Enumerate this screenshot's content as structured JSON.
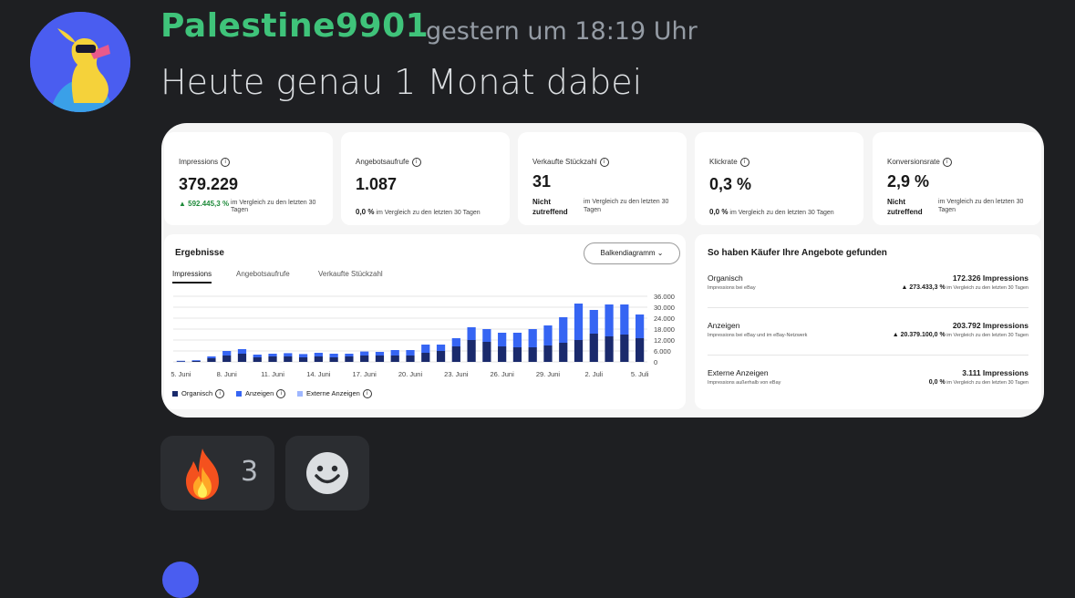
{
  "message": {
    "author": "Palestine9901",
    "timestamp": "gestern um 18:19 Uhr",
    "text": "Heute genau 1 Monat dabei"
  },
  "kpis": [
    {
      "label": "Impressions",
      "value": "379.229",
      "change": "592.445,3 %",
      "compare": "im Vergleich zu den letzten 30 Tagen"
    },
    {
      "label": "Angebotsaufrufe",
      "value": "1.087",
      "change": "0,0 %",
      "compare": "im Vergleich zu den letzten 30 Tagen"
    },
    {
      "label": "Verkaufte Stückzahl",
      "value": "31",
      "change": "Nicht zutreffend",
      "compare": "im Vergleich zu den letzten 30 Tagen"
    },
    {
      "label": "Klickrate",
      "value": "0,3 %",
      "change": "0,0 %",
      "compare": "im Vergleich zu den letzten 30 Tagen"
    },
    {
      "label": "Konversionsrate",
      "value": "2,9 %",
      "change": "Nicht zutreffend",
      "compare": "im Vergleich zu den letzten 30 Tagen"
    }
  ],
  "results": {
    "title": "Ergebnisse",
    "tabs": [
      "Impressions",
      "Angebotsaufrufe",
      "Verkaufte Stückzahl"
    ],
    "dropdown": "Balkendiagramm",
    "legend": [
      "Organisch",
      "Anzeigen",
      "Externe Anzeigen"
    ]
  },
  "chart_data": {
    "type": "bar",
    "stacked": true,
    "x_tick_labels": [
      "5. Juni",
      "8. Juni",
      "11. Juni",
      "14. Juni",
      "17. Juni",
      "20. Juni",
      "23. Juni",
      "26. Juni",
      "29. Juni",
      "2. Juli",
      "5. Juli"
    ],
    "y_tick_labels": [
      "36.000",
      "30.000",
      "24.000",
      "18.000",
      "12.000",
      "6.000",
      "0"
    ],
    "ylim": [
      0,
      36000
    ],
    "series": [
      {
        "name": "Organisch",
        "color": "#1a2a6c",
        "values": [
          300,
          500,
          2000,
          3500,
          4500,
          2500,
          3000,
          3000,
          2500,
          3000,
          2500,
          3000,
          3500,
          3500,
          3500,
          3500,
          5000,
          6000,
          8500,
          12000,
          11000,
          8500,
          8000,
          8000,
          9000,
          10500,
          12000,
          15500,
          14000,
          15000,
          13000
        ]
      },
      {
        "name": "Anzeigen",
        "color": "#3665f3",
        "values": [
          300,
          400,
          1000,
          2500,
          2500,
          1500,
          1500,
          1800,
          1800,
          2000,
          2000,
          1500,
          2200,
          2000,
          3000,
          3000,
          4500,
          3500,
          4500,
          7000,
          7000,
          7500,
          8000,
          10000,
          11000,
          14000,
          20000,
          13000,
          17500,
          16500,
          13000
        ]
      },
      {
        "name": "Externe Anzeigen",
        "color": "#9fb7ff",
        "values": [
          0,
          0,
          0,
          0,
          0,
          0,
          0,
          0,
          0,
          0,
          0,
          0,
          0,
          0,
          0,
          0,
          0,
          0,
          0,
          0,
          0,
          0,
          0,
          0,
          0,
          0,
          0,
          0,
          0,
          0,
          0
        ]
      }
    ],
    "grid": true,
    "legend_position": "bottom-left"
  },
  "sources": {
    "title": "So haben Käufer Ihre Angebote gefunden",
    "items": [
      {
        "name": "Organisch",
        "sub": "Impressions bei eBay",
        "value": "172.326 Impressions",
        "change": "273.433,3 %",
        "compare": "im Vergleich zu den letzten 30 Tagen",
        "up": true
      },
      {
        "name": "Anzeigen",
        "sub": "Impressions bei eBay und im eBay-Netzwerk",
        "value": "203.792 Impressions",
        "change": "20.379.100,0 %",
        "compare": "im Vergleich zu den letzten 30 Tagen",
        "up": true
      },
      {
        "name": "Externe Anzeigen",
        "sub": "Impressions außerhalb von eBay",
        "value": "3.111 Impressions",
        "change": "0,0 %",
        "compare": "im Vergleich zu den letzten 30 Tagen",
        "up": false
      }
    ]
  },
  "reactions": [
    {
      "emoji_icon": "fire-icon",
      "count": "3"
    },
    {
      "emoji_icon": "add-reaction-smiley-icon"
    }
  ],
  "colors": {
    "background": "#1e1f22",
    "author": "#3fc37a",
    "timestamp": "#949ba4",
    "reaction_bg": "#2b2d31",
    "gain_green": "#1e8a3a"
  }
}
